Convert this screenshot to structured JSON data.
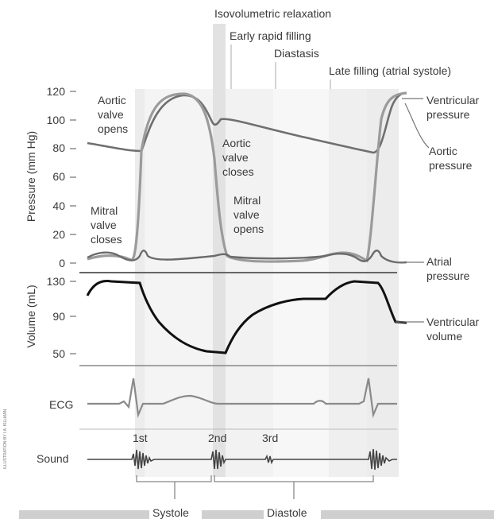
{
  "phases": {
    "isovolumetric_relaxation": "Isovolumetric relaxation",
    "early_rapid_filling": "Early rapid filling",
    "diastasis": "Diastasis",
    "late_filling": "Late filling (atrial systole)"
  },
  "pressure_panel": {
    "ylabel": "Pressure (mm Hg)",
    "ticks": [
      "120",
      "100",
      "80",
      "60",
      "40",
      "20",
      "0"
    ],
    "annotations": {
      "aortic_valve_opens": [
        "Aortic",
        "valve",
        "opens"
      ],
      "aortic_valve_closes": [
        "Aortic",
        "valve",
        "closes"
      ],
      "mitral_valve_closes": [
        "Mitral",
        "valve",
        "closes"
      ],
      "mitral_valve_opens": [
        "Mitral",
        "valve",
        "opens"
      ]
    },
    "series_labels": {
      "ventricular_pressure": [
        "Ventricular",
        "pressure"
      ],
      "aortic_pressure": [
        "Aortic",
        "pressure"
      ],
      "atrial_pressure": [
        "Atrial",
        "pressure"
      ]
    }
  },
  "volume_panel": {
    "ylabel": "Volume (mL)",
    "ticks": [
      "130",
      "90",
      "50"
    ],
    "series_label": [
      "Ventricular",
      "volume"
    ]
  },
  "ecg_panel": {
    "label": "ECG"
  },
  "sound_panel": {
    "label": "Sound",
    "sounds": [
      "1st",
      "2nd",
      "3rd"
    ]
  },
  "cycle": {
    "systole": "Systole",
    "diastole": "Diastole"
  },
  "credit": "ILLUSTRATION BY I.A. KILLMAN",
  "colors": {
    "background": "#ffffff",
    "phase_band": "#e6e6e6",
    "trace_gray": "#7a7a7a",
    "trace_black": "#111111",
    "text": "#3a3a3a"
  }
}
